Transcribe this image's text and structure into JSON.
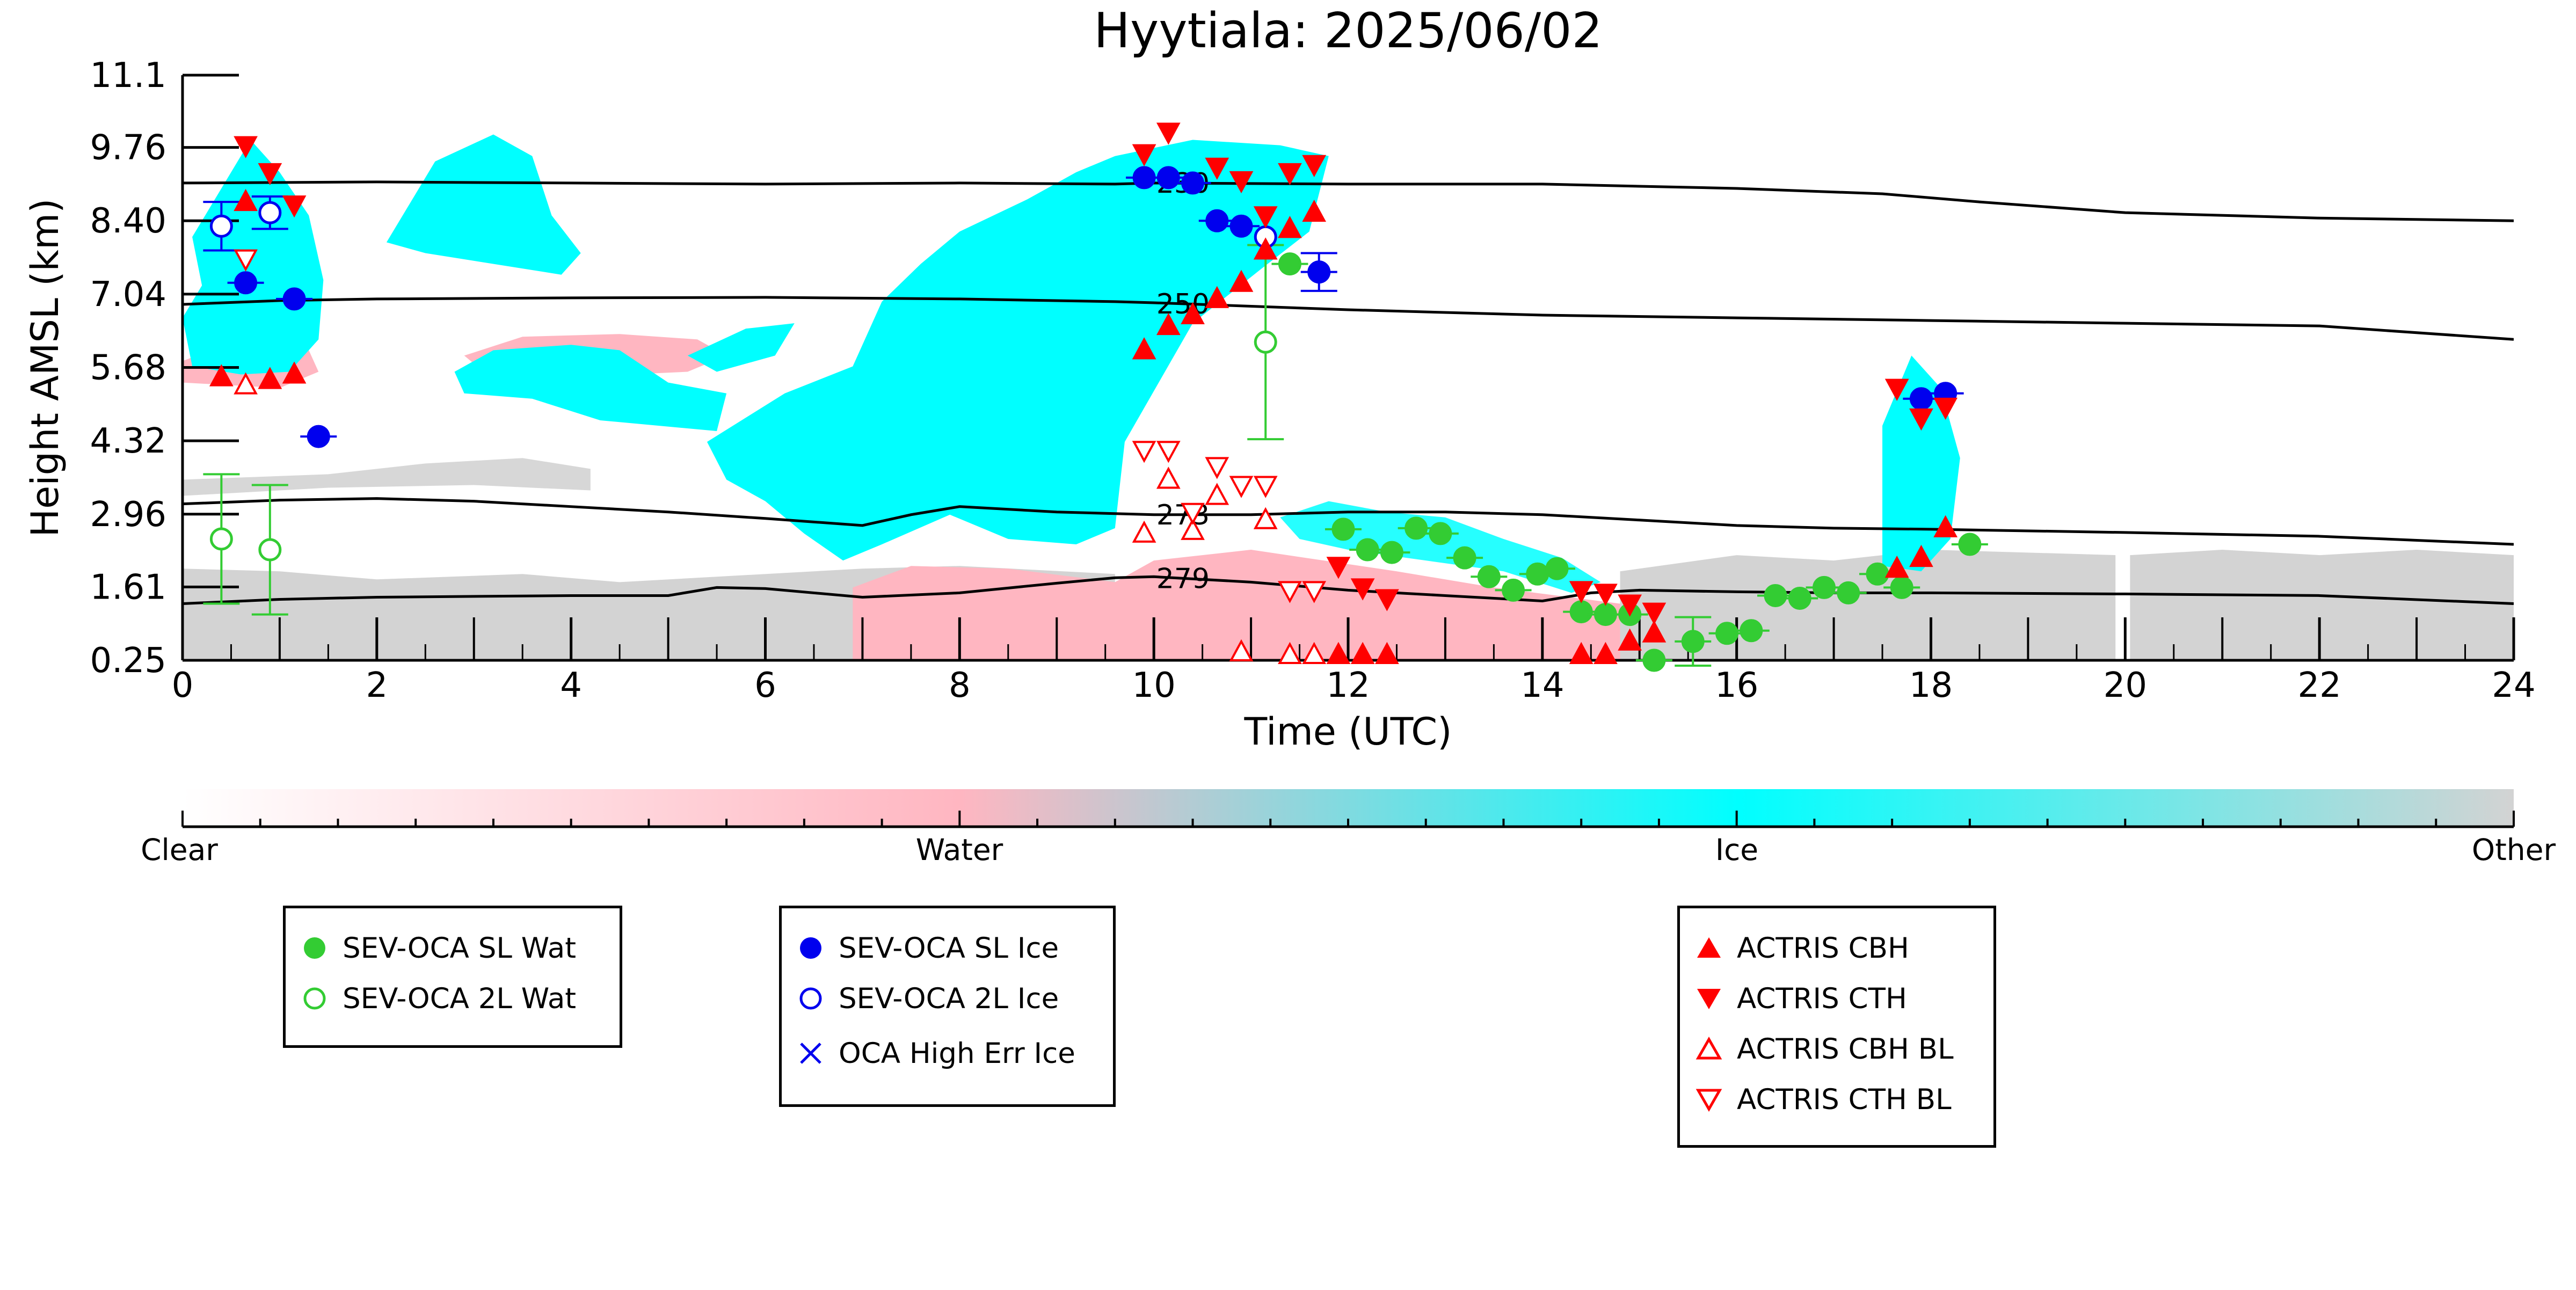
{
  "title": "Hyytiala: 2025/06/02",
  "colors": {
    "ice": "#00ffff",
    "water": "#ffb6c1",
    "other": "#d3d3d3",
    "sev_wat": "#33cc33",
    "sev_ice": "#0000ee",
    "actris": "#ff0000",
    "isotherm": "#000000"
  },
  "colorbar": {
    "labels": [
      "Clear",
      "Water",
      "Ice",
      "Other"
    ]
  },
  "legends": [
    {
      "items": [
        {
          "label": "SEV-OCA SL Wat",
          "symbol": "filled-circle",
          "color": "#33cc33"
        },
        {
          "label": "SEV-OCA 2L Wat",
          "symbol": "open-circle",
          "color": "#33cc33"
        }
      ]
    },
    {
      "items": [
        {
          "label": "SEV-OCA SL Ice",
          "symbol": "filled-circle",
          "color": "#0000ee"
        },
        {
          "label": "SEV-OCA 2L Ice",
          "symbol": "open-circle",
          "color": "#0000ee"
        },
        {
          "label": "OCA High Err Ice",
          "symbol": "x",
          "color": "#0000ee"
        }
      ]
    },
    {
      "items": [
        {
          "label": "ACTRIS CBH",
          "symbol": "triangle-up",
          "color": "#ff0000"
        },
        {
          "label": "ACTRIS CTH",
          "symbol": "triangle-down",
          "color": "#ff0000"
        },
        {
          "label": "ACTRIS CBH BL",
          "symbol": "open-triangle-up",
          "color": "#ff0000"
        },
        {
          "label": "ACTRIS CTH BL",
          "symbol": "open-triangle-down",
          "color": "#ff0000"
        }
      ]
    }
  ],
  "chart_data": {
    "type": "scatter",
    "title": "Hyytiala: 2025/06/02",
    "xlabel": "Time (UTC)",
    "ylabel": "Height AMSL (km)",
    "xlim": [
      0,
      24
    ],
    "ylim": [
      0.25,
      11.1
    ],
    "xticks": [
      "0",
      "2",
      "4",
      "6",
      "8",
      "10",
      "12",
      "14",
      "16",
      "18",
      "20",
      "22",
      "24"
    ],
    "yticks": [
      "0.25",
      "1.61",
      "2.96",
      "4.32",
      "5.68",
      "7.04",
      "8.40",
      "9.76",
      "11.1"
    ],
    "background": "cloud classification (Clear / Water / Ice / Other)",
    "isotherms": [
      {
        "label": "230",
        "points": [
          [
            0,
            9.1
          ],
          [
            2,
            9.12
          ],
          [
            4,
            9.1
          ],
          [
            6,
            9.08
          ],
          [
            8,
            9.1
          ],
          [
            9.6,
            9.08
          ],
          [
            10,
            9.1
          ],
          [
            12,
            9.08
          ],
          [
            14,
            9.08
          ],
          [
            16,
            9.0
          ],
          [
            17.5,
            8.9
          ],
          [
            18.5,
            8.75
          ],
          [
            20,
            8.55
          ],
          [
            22,
            8.45
          ],
          [
            24,
            8.4
          ]
        ]
      },
      {
        "label": "250",
        "points": [
          [
            0,
            6.85
          ],
          [
            1,
            6.92
          ],
          [
            2,
            6.95
          ],
          [
            4,
            6.97
          ],
          [
            6,
            6.98
          ],
          [
            8,
            6.95
          ],
          [
            9.6,
            6.9
          ],
          [
            10,
            6.88
          ],
          [
            12,
            6.75
          ],
          [
            14,
            6.65
          ],
          [
            16,
            6.6
          ],
          [
            18,
            6.55
          ],
          [
            20,
            6.5
          ],
          [
            22,
            6.45
          ],
          [
            24,
            6.2
          ]
        ]
      },
      {
        "label": "273",
        "points": [
          [
            0,
            3.15
          ],
          [
            1,
            3.22
          ],
          [
            2,
            3.25
          ],
          [
            3,
            3.2
          ],
          [
            4,
            3.1
          ],
          [
            5,
            3.0
          ],
          [
            6,
            2.88
          ],
          [
            7,
            2.75
          ],
          [
            7.5,
            2.95
          ],
          [
            8,
            3.1
          ],
          [
            9,
            3.0
          ],
          [
            9.6,
            2.97
          ],
          [
            10,
            2.95
          ],
          [
            11,
            2.95
          ],
          [
            12,
            3.0
          ],
          [
            13,
            3.0
          ],
          [
            14,
            2.95
          ],
          [
            15,
            2.85
          ],
          [
            16,
            2.75
          ],
          [
            17,
            2.7
          ],
          [
            18,
            2.68
          ],
          [
            20,
            2.62
          ],
          [
            22,
            2.55
          ],
          [
            24,
            2.4
          ]
        ]
      },
      {
        "label": "279",
        "points": [
          [
            0,
            1.3
          ],
          [
            1,
            1.38
          ],
          [
            2,
            1.42
          ],
          [
            4,
            1.45
          ],
          [
            5,
            1.45
          ],
          [
            5.5,
            1.6
          ],
          [
            6,
            1.58
          ],
          [
            7,
            1.42
          ],
          [
            8,
            1.5
          ],
          [
            9,
            1.68
          ],
          [
            9.6,
            1.78
          ],
          [
            10,
            1.8
          ],
          [
            11,
            1.7
          ],
          [
            12,
            1.55
          ],
          [
            13,
            1.45
          ],
          [
            14,
            1.35
          ],
          [
            14.5,
            1.5
          ],
          [
            15,
            1.55
          ],
          [
            16,
            1.52
          ],
          [
            17,
            1.5
          ],
          [
            18,
            1.5
          ],
          [
            20,
            1.48
          ],
          [
            22,
            1.45
          ],
          [
            24,
            1.3
          ]
        ]
      }
    ],
    "series": [
      {
        "name": "SEV-OCA SL Wat",
        "points": [
          {
            "x": 11.4,
            "y": 7.6,
            "err": null
          },
          {
            "x": 11.95,
            "y": 2.68,
            "err": null
          },
          {
            "x": 12.2,
            "y": 2.3,
            "err": null
          },
          {
            "x": 12.45,
            "y": 2.25,
            "err": null
          },
          {
            "x": 12.7,
            "y": 2.7,
            "err": null
          },
          {
            "x": 12.95,
            "y": 2.6,
            "err": null
          },
          {
            "x": 13.2,
            "y": 2.15,
            "err": null
          },
          {
            "x": 13.45,
            "y": 1.8,
            "err": null
          },
          {
            "x": 13.7,
            "y": 1.55,
            "err": null
          },
          {
            "x": 13.95,
            "y": 1.85,
            "err": null
          },
          {
            "x": 14.15,
            "y": 1.95,
            "err": null
          },
          {
            "x": 14.4,
            "y": 1.15,
            "err": null
          },
          {
            "x": 14.65,
            "y": 1.1,
            "err": null
          },
          {
            "x": 14.9,
            "y": 1.1,
            "err": null
          },
          {
            "x": 15.15,
            "y": 0.25,
            "err": null
          },
          {
            "x": 15.55,
            "y": 0.6,
            "err": 0.45
          },
          {
            "x": 15.9,
            "y": 0.75,
            "err": null
          },
          {
            "x": 16.15,
            "y": 0.8,
            "err": null
          },
          {
            "x": 16.4,
            "y": 1.45,
            "err": null
          },
          {
            "x": 16.65,
            "y": 1.4,
            "err": null
          },
          {
            "x": 16.9,
            "y": 1.6,
            "err": null
          },
          {
            "x": 17.15,
            "y": 1.5,
            "err": null
          },
          {
            "x": 17.45,
            "y": 1.85,
            "err": null
          },
          {
            "x": 17.7,
            "y": 1.6,
            "err": null
          },
          {
            "x": 18.4,
            "y": 2.4,
            "err": null
          }
        ]
      },
      {
        "name": "SEV-OCA 2L Wat",
        "points": [
          {
            "x": 0.4,
            "y": 2.5,
            "err": 1.2
          },
          {
            "x": 0.9,
            "y": 2.3,
            "err": 1.2
          },
          {
            "x": 11.15,
            "y": 6.15,
            "err": 1.8
          }
        ]
      },
      {
        "name": "SEV-OCA SL Ice",
        "points": [
          {
            "x": 0.65,
            "y": 7.25,
            "err": null
          },
          {
            "x": 1.15,
            "y": 6.95,
            "err": null
          },
          {
            "x": 1.4,
            "y": 4.4,
            "err": null
          },
          {
            "x": 9.9,
            "y": 9.2,
            "err": null
          },
          {
            "x": 10.15,
            "y": 9.2,
            "err": null
          },
          {
            "x": 10.4,
            "y": 9.1,
            "err": null
          },
          {
            "x": 10.65,
            "y": 8.4,
            "err": null
          },
          {
            "x": 10.9,
            "y": 8.3,
            "err": null
          },
          {
            "x": 11.7,
            "y": 7.45,
            "err": 0.35
          },
          {
            "x": 17.9,
            "y": 5.1,
            "err": null
          },
          {
            "x": 18.15,
            "y": 5.2,
            "err": null
          }
        ]
      },
      {
        "name": "SEV-OCA 2L Ice",
        "points": [
          {
            "x": 0.4,
            "y": 8.3,
            "err": 0.45
          },
          {
            "x": 0.9,
            "y": 8.55,
            "err": 0.3
          },
          {
            "x": 11.15,
            "y": 8.1,
            "err": null
          }
        ]
      },
      {
        "name": "OCA High Err Ice",
        "points": []
      },
      {
        "name": "ACTRIS CBH",
        "points": [
          {
            "x": 0.4,
            "y": 5.5
          },
          {
            "x": 0.9,
            "y": 5.45
          },
          {
            "x": 1.15,
            "y": 5.55
          },
          {
            "x": 0.65,
            "y": 8.75
          },
          {
            "x": 9.9,
            "y": 6.0
          },
          {
            "x": 10.15,
            "y": 6.45
          },
          {
            "x": 10.4,
            "y": 6.65
          },
          {
            "x": 10.65,
            "y": 6.95
          },
          {
            "x": 10.9,
            "y": 7.25
          },
          {
            "x": 11.15,
            "y": 7.85
          },
          {
            "x": 11.4,
            "y": 8.25
          },
          {
            "x": 11.65,
            "y": 8.55
          },
          {
            "x": 11.9,
            "y": 0.35
          },
          {
            "x": 12.15,
            "y": 0.35
          },
          {
            "x": 12.4,
            "y": 0.35
          },
          {
            "x": 14.4,
            "y": 0.35
          },
          {
            "x": 14.65,
            "y": 0.35
          },
          {
            "x": 14.9,
            "y": 0.6
          },
          {
            "x": 15.15,
            "y": 0.75
          },
          {
            "x": 17.65,
            "y": 1.95
          },
          {
            "x": 17.9,
            "y": 2.15
          },
          {
            "x": 18.15,
            "y": 2.7
          }
        ]
      },
      {
        "name": "ACTRIS CTH",
        "points": [
          {
            "x": 0.65,
            "y": 9.8
          },
          {
            "x": 0.9,
            "y": 9.3
          },
          {
            "x": 1.15,
            "y": 8.7
          },
          {
            "x": 9.9,
            "y": 9.65
          },
          {
            "x": 10.15,
            "y": 10.05
          },
          {
            "x": 10.65,
            "y": 9.4
          },
          {
            "x": 10.9,
            "y": 9.15
          },
          {
            "x": 11.15,
            "y": 8.5
          },
          {
            "x": 11.4,
            "y": 9.3
          },
          {
            "x": 11.65,
            "y": 9.45
          },
          {
            "x": 11.9,
            "y": 2.0
          },
          {
            "x": 12.15,
            "y": 1.6
          },
          {
            "x": 12.4,
            "y": 1.4
          },
          {
            "x": 14.4,
            "y": 1.55
          },
          {
            "x": 14.65,
            "y": 1.5
          },
          {
            "x": 14.9,
            "y": 1.3
          },
          {
            "x": 15.15,
            "y": 1.15
          },
          {
            "x": 17.65,
            "y": 5.3
          },
          {
            "x": 17.9,
            "y": 4.75
          },
          {
            "x": 18.15,
            "y": 4.95
          }
        ]
      },
      {
        "name": "ACTRIS CBH BL",
        "points": [
          {
            "x": 0.65,
            "y": 5.35
          },
          {
            "x": 9.9,
            "y": 2.6
          },
          {
            "x": 10.15,
            "y": 3.6
          },
          {
            "x": 10.4,
            "y": 2.65
          },
          {
            "x": 10.65,
            "y": 3.3
          },
          {
            "x": 11.15,
            "y": 2.85
          },
          {
            "x": 10.9,
            "y": 0.4
          },
          {
            "x": 11.4,
            "y": 0.35
          },
          {
            "x": 11.65,
            "y": 0.35
          }
        ]
      },
      {
        "name": "ACTRIS CTH BL",
        "points": [
          {
            "x": 0.65,
            "y": 7.7
          },
          {
            "x": 9.9,
            "y": 4.15
          },
          {
            "x": 10.15,
            "y": 4.15
          },
          {
            "x": 10.4,
            "y": 3.0
          },
          {
            "x": 10.65,
            "y": 3.85
          },
          {
            "x": 10.9,
            "y": 3.5
          },
          {
            "x": 11.15,
            "y": 3.5
          },
          {
            "x": 11.4,
            "y": 1.55
          },
          {
            "x": 11.65,
            "y": 1.55
          }
        ]
      }
    ]
  }
}
